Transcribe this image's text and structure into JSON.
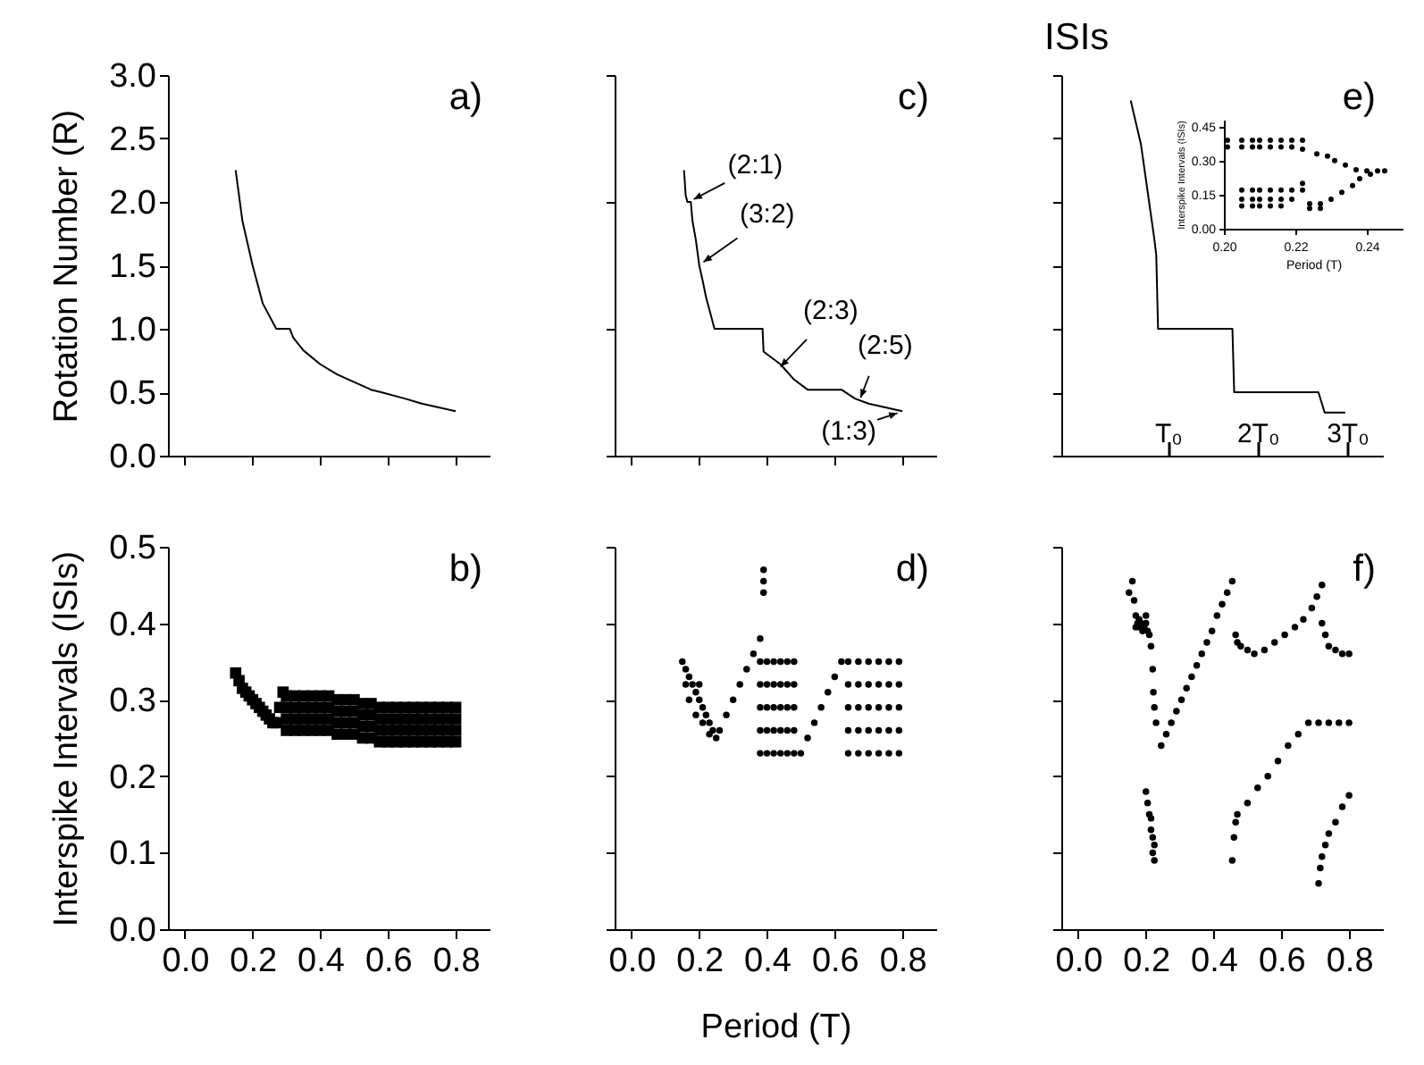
{
  "chart_data": [
    {
      "type": "line",
      "ylabel": "Rotation Number (R)",
      "annotations": [
        "a)"
      ],
      "xlim": [
        -0.05,
        0.9
      ],
      "ylim": [
        0,
        3
      ],
      "tick_labels": "y",
      "xticks": [
        0,
        0.2,
        0.4,
        0.6,
        0.8
      ],
      "yticks": [
        {
          "value": 0,
          "label": "0.0"
        },
        {
          "value": 0.5,
          "label": "0.5"
        },
        {
          "value": 1,
          "label": "1.0"
        },
        {
          "value": 1.5,
          "label": "1.5"
        },
        {
          "value": 2,
          "label": "2.0"
        },
        {
          "value": 2.5,
          "label": "2.5"
        },
        {
          "value": 3,
          "label": "3.0"
        }
      ],
      "series": [
        {
          "color": "#000000",
          "x": [
            0.15,
            0.17,
            0.2,
            0.23,
            0.27,
            0.31,
            0.32,
            0.35,
            0.4,
            0.45,
            0.5,
            0.55,
            0.58,
            0.65,
            0.7,
            0.75,
            0.8
          ],
          "values": [
            2.25,
            1.85,
            1.5,
            1.2,
            1.0,
            1.0,
            0.93,
            0.83,
            0.72,
            0.64,
            0.58,
            0.52,
            0.5,
            0.45,
            0.41,
            0.38,
            0.35
          ]
        }
      ]
    },
    {
      "type": "line",
      "annotations": [
        "c)",
        {
          "text": "(2:1)",
          "x": 0.17,
          "y": 2.0
        },
        {
          "text": "(3:2)",
          "x": 0.2,
          "y": 1.5
        },
        {
          "text": "(2:3)",
          "x": 0.43,
          "y": 0.67
        },
        {
          "text": "(2:5)",
          "x": 0.67,
          "y": 0.42
        },
        {
          "text": "(1:3)",
          "x": 0.8,
          "y": 0.35
        }
      ],
      "xlim": [
        -0.05,
        0.9
      ],
      "ylim": [
        0,
        3
      ],
      "tick_labels": false,
      "xticks": [
        0,
        0.2,
        0.4,
        0.6,
        0.8
      ],
      "yticks": [
        0,
        0.5,
        1,
        1.5,
        2,
        2.5,
        3
      ],
      "series": [
        {
          "color": "#000000",
          "x": [
            0.155,
            0.16,
            0.165,
            0.175,
            0.18,
            0.19,
            0.2,
            0.21,
            0.22,
            0.235,
            0.245,
            0.387,
            0.39,
            0.41,
            0.44,
            0.48,
            0.52,
            0.62,
            0.66,
            0.7,
            0.75,
            0.8
          ],
          "values": [
            2.25,
            2.05,
            2.0,
            2.0,
            1.85,
            1.7,
            1.5,
            1.38,
            1.25,
            1.1,
            1.0,
            1.0,
            0.82,
            0.78,
            0.72,
            0.6,
            0.52,
            0.52,
            0.45,
            0.41,
            0.38,
            0.35
          ]
        }
      ]
    },
    {
      "type": "line",
      "title": "ISIs",
      "annotations": [
        "e)"
      ],
      "xlim": [
        -0.19,
        3.4
      ],
      "ylim": [
        0,
        3
      ],
      "tick_labels": "x",
      "xticks": [
        {
          "value": 1,
          "label": "T₀"
        },
        {
          "value": 2,
          "label": "2T₀"
        },
        {
          "value": 3,
          "label": "3T₀"
        }
      ],
      "yticks": [
        0,
        0.5,
        1,
        1.5,
        2,
        2.5,
        3
      ],
      "series": [
        {
          "color": "#000000",
          "x": [
            0.585,
            0.7,
            0.79,
            0.85,
            0.87,
            0.89,
            1.72,
            1.74,
            2.68,
            2.75,
            2.98
          ],
          "values": [
            2.8,
            2.45,
            2.0,
            1.7,
            1.58,
            1.0,
            1.0,
            0.5,
            0.5,
            0.34,
            0.34
          ]
        }
      ]
    },
    {
      "type": "scatter",
      "xlabel": "Period (T)",
      "ylabel": "Interspike Intervals (ISIs)",
      "xlim": [
        0.2,
        0.25
      ],
      "ylim": [
        0,
        0.48
      ],
      "marker": "circle",
      "xticks": [
        {
          "value": 0.2,
          "label": "0.20"
        },
        {
          "value": 0.22,
          "label": "0.22"
        },
        {
          "value": 0.24,
          "label": "0.24"
        }
      ],
      "yticks": [
        {
          "value": 0,
          "label": "0.00"
        },
        {
          "value": 0.15,
          "label": "0.15"
        },
        {
          "value": 0.3,
          "label": "0.30"
        },
        {
          "value": 0.45,
          "label": "0.45"
        }
      ],
      "series": [
        {
          "color": "#000000",
          "x": [
            0.201,
            0.201,
            0.205,
            0.205,
            0.208,
            0.208,
            0.21,
            0.21,
            0.213,
            0.213,
            0.216,
            0.216,
            0.219,
            0.219,
            0.222,
            0.222,
            0.226,
            0.229,
            0.231,
            0.234,
            0.237,
            0.24,
            0.243,
            0.245,
            0.205,
            0.205,
            0.205,
            0.208,
            0.208,
            0.208,
            0.21,
            0.21,
            0.21,
            0.213,
            0.213,
            0.213,
            0.216,
            0.216,
            0.216,
            0.219,
            0.219,
            0.222,
            0.222,
            0.224,
            0.224,
            0.227,
            0.227,
            0.23,
            0.233,
            0.236,
            0.238,
            0.241
          ],
          "values": [
            0.39,
            0.36,
            0.39,
            0.36,
            0.39,
            0.36,
            0.39,
            0.36,
            0.39,
            0.36,
            0.39,
            0.36,
            0.39,
            0.36,
            0.39,
            0.35,
            0.33,
            0.32,
            0.3,
            0.28,
            0.26,
            0.255,
            0.255,
            0.255,
            0.17,
            0.13,
            0.1,
            0.17,
            0.13,
            0.1,
            0.17,
            0.13,
            0.1,
            0.17,
            0.13,
            0.1,
            0.17,
            0.13,
            0.1,
            0.17,
            0.13,
            0.2,
            0.17,
            0.09,
            0.11,
            0.09,
            0.11,
            0.13,
            0.16,
            0.19,
            0.22,
            0.24
          ]
        }
      ]
    },
    {
      "type": "scatter",
      "ylabel": "Interspike Intervals (ISIs)",
      "annotations": [
        "b)"
      ],
      "xlim": [
        -0.05,
        0.9
      ],
      "ylim": [
        0,
        0.5
      ],
      "marker": "square",
      "xticks": [
        {
          "value": 0,
          "label": "0.0"
        },
        {
          "value": 0.2,
          "label": "0.2"
        },
        {
          "value": 0.4,
          "label": "0.4"
        },
        {
          "value": 0.6,
          "label": "0.6"
        },
        {
          "value": 0.8,
          "label": "0.8"
        }
      ],
      "yticks": [
        {
          "value": 0,
          "label": "0.0"
        },
        {
          "value": 0.1,
          "label": "0.1"
        },
        {
          "value": 0.2,
          "label": "0.2"
        },
        {
          "value": 0.3,
          "label": "0.3"
        },
        {
          "value": 0.4,
          "label": "0.4"
        },
        {
          "value": 0.5,
          "label": "0.5"
        }
      ],
      "series": [
        {
          "color": "#000000",
          "x": [
            0.15,
            0.16,
            0.17,
            0.18,
            0.19,
            0.2,
            0.21,
            0.22,
            0.23,
            0.24,
            0.25,
            0.26,
            0.27,
            0.28,
            0.29,
            0.3,
            0.3,
            0.3,
            0.3,
            0.325,
            0.325,
            0.325,
            0.325,
            0.35,
            0.35,
            0.35,
            0.35,
            0.375,
            0.375,
            0.375,
            0.375,
            0.4,
            0.4,
            0.4,
            0.4,
            0.425,
            0.425,
            0.425,
            0.425,
            0.45,
            0.45,
            0.45,
            0.45,
            0.475,
            0.475,
            0.475,
            0.475,
            0.5,
            0.5,
            0.5,
            0.5,
            0.525,
            0.525,
            0.525,
            0.525,
            0.55,
            0.55,
            0.55,
            0.55,
            0.575,
            0.575,
            0.575,
            0.575,
            0.6,
            0.6,
            0.6,
            0.6,
            0.625,
            0.625,
            0.625,
            0.625,
            0.65,
            0.65,
            0.65,
            0.65,
            0.675,
            0.675,
            0.675,
            0.675,
            0.7,
            0.7,
            0.7,
            0.7,
            0.725,
            0.725,
            0.725,
            0.725,
            0.75,
            0.75,
            0.75,
            0.75,
            0.775,
            0.775,
            0.775,
            0.775,
            0.8,
            0.8,
            0.8,
            0.8
          ],
          "values": [
            0.335,
            0.325,
            0.315,
            0.31,
            0.305,
            0.3,
            0.295,
            0.29,
            0.285,
            0.28,
            0.275,
            0.27,
            0.27,
            0.29,
            0.31,
            0.26,
            0.275,
            0.29,
            0.305,
            0.26,
            0.275,
            0.29,
            0.305,
            0.26,
            0.275,
            0.29,
            0.305,
            0.26,
            0.275,
            0.29,
            0.305,
            0.26,
            0.275,
            0.29,
            0.305,
            0.26,
            0.275,
            0.29,
            0.305,
            0.255,
            0.27,
            0.285,
            0.3,
            0.255,
            0.27,
            0.285,
            0.3,
            0.255,
            0.27,
            0.285,
            0.3,
            0.25,
            0.265,
            0.28,
            0.295,
            0.25,
            0.265,
            0.28,
            0.295,
            0.245,
            0.26,
            0.275,
            0.29,
            0.245,
            0.26,
            0.275,
            0.29,
            0.245,
            0.26,
            0.275,
            0.29,
            0.245,
            0.26,
            0.275,
            0.29,
            0.245,
            0.26,
            0.275,
            0.29,
            0.245,
            0.26,
            0.275,
            0.29,
            0.245,
            0.26,
            0.275,
            0.29,
            0.245,
            0.26,
            0.275,
            0.29,
            0.245,
            0.26,
            0.275,
            0.29,
            0.245,
            0.26,
            0.275,
            0.29
          ]
        }
      ]
    },
    {
      "type": "scatter",
      "xlabel": "Period (T)",
      "annotations": [
        "d)"
      ],
      "xlim": [
        -0.05,
        0.9
      ],
      "ylim": [
        0,
        0.5
      ],
      "tick_labels": "x",
      "marker": "circle",
      "xticks": [
        {
          "value": 0,
          "label": "0.0"
        },
        {
          "value": 0.2,
          "label": "0.2"
        },
        {
          "value": 0.4,
          "label": "0.4"
        },
        {
          "value": 0.6,
          "label": "0.6"
        },
        {
          "value": 0.8,
          "label": "0.8"
        }
      ],
      "yticks": [
        0,
        0.1,
        0.2,
        0.3,
        0.4,
        0.5
      ],
      "series": [
        {
          "color": "#000000",
          "x": [
            0.15,
            0.16,
            0.17,
            0.18,
            0.19,
            0.2,
            0.21,
            0.22,
            0.23,
            0.24,
            0.25,
            0.17,
            0.19,
            0.21,
            0.23,
            0.16,
            0.2,
            0.26,
            0.28,
            0.3,
            0.32,
            0.34,
            0.36,
            0.38,
            0.39,
            0.39,
            0.39,
            0.38,
            0.38,
            0.38,
            0.38,
            0.38,
            0.4,
            0.4,
            0.4,
            0.4,
            0.4,
            0.42,
            0.42,
            0.42,
            0.42,
            0.42,
            0.44,
            0.44,
            0.44,
            0.44,
            0.44,
            0.46,
            0.46,
            0.46,
            0.46,
            0.46,
            0.48,
            0.48,
            0.48,
            0.48,
            0.48,
            0.5,
            0.52,
            0.54,
            0.56,
            0.58,
            0.6,
            0.62,
            0.64,
            0.64,
            0.64,
            0.64,
            0.64,
            0.67,
            0.67,
            0.67,
            0.67,
            0.67,
            0.7,
            0.7,
            0.7,
            0.7,
            0.7,
            0.73,
            0.73,
            0.73,
            0.73,
            0.73,
            0.76,
            0.76,
            0.76,
            0.76,
            0.76,
            0.79,
            0.79,
            0.79,
            0.79,
            0.79
          ],
          "values": [
            0.35,
            0.34,
            0.33,
            0.32,
            0.31,
            0.3,
            0.29,
            0.28,
            0.27,
            0.26,
            0.25,
            0.3,
            0.28,
            0.27,
            0.255,
            0.32,
            0.32,
            0.26,
            0.28,
            0.3,
            0.32,
            0.34,
            0.36,
            0.38,
            0.44,
            0.455,
            0.47,
            0.23,
            0.26,
            0.29,
            0.32,
            0.35,
            0.23,
            0.26,
            0.29,
            0.32,
            0.35,
            0.23,
            0.26,
            0.29,
            0.32,
            0.35,
            0.23,
            0.26,
            0.29,
            0.32,
            0.35,
            0.23,
            0.26,
            0.29,
            0.32,
            0.35,
            0.23,
            0.26,
            0.29,
            0.32,
            0.35,
            0.23,
            0.25,
            0.27,
            0.29,
            0.31,
            0.33,
            0.35,
            0.23,
            0.26,
            0.29,
            0.32,
            0.35,
            0.23,
            0.26,
            0.29,
            0.32,
            0.35,
            0.23,
            0.26,
            0.29,
            0.32,
            0.35,
            0.23,
            0.26,
            0.29,
            0.32,
            0.35,
            0.23,
            0.26,
            0.29,
            0.32,
            0.35,
            0.23,
            0.26,
            0.29,
            0.32,
            0.35
          ]
        }
      ]
    },
    {
      "type": "scatter",
      "annotations": [
        "f)"
      ],
      "xlim": [
        -0.05,
        0.9
      ],
      "ylim": [
        0,
        0.5
      ],
      "tick_labels": "x",
      "marker": "circle",
      "xticks": [
        {
          "value": 0,
          "label": "0.0"
        },
        {
          "value": 0.2,
          "label": "0.2"
        },
        {
          "value": 0.4,
          "label": "0.4"
        },
        {
          "value": 0.6,
          "label": "0.6"
        },
        {
          "value": 0.8,
          "label": "0.8"
        }
      ],
      "yticks": [
        0,
        0.1,
        0.2,
        0.3,
        0.4,
        0.5
      ],
      "series": [
        {
          "color": "#000000",
          "x": [
            0.15,
            0.16,
            0.165,
            0.17,
            0.175,
            0.18,
            0.185,
            0.19,
            0.195,
            0.2,
            0.205,
            0.21,
            0.17,
            0.18,
            0.2,
            0.215,
            0.22,
            0.222,
            0.225,
            0.23,
            0.2,
            0.205,
            0.21,
            0.215,
            0.22,
            0.22,
            0.225,
            0.215,
            0.225,
            0.245,
            0.26,
            0.275,
            0.29,
            0.305,
            0.32,
            0.335,
            0.35,
            0.365,
            0.38,
            0.395,
            0.41,
            0.425,
            0.44,
            0.455,
            0.465,
            0.47,
            0.48,
            0.5,
            0.52,
            0.55,
            0.58,
            0.61,
            0.64,
            0.665,
            0.69,
            0.705,
            0.72,
            0.72,
            0.73,
            0.74,
            0.76,
            0.78,
            0.8,
            0.455,
            0.46,
            0.465,
            0.47,
            0.5,
            0.53,
            0.56,
            0.59,
            0.62,
            0.65,
            0.68,
            0.71,
            0.74,
            0.77,
            0.8,
            0.71,
            0.715,
            0.72,
            0.73,
            0.74,
            0.76,
            0.78,
            0.8
          ],
          "values": [
            0.44,
            0.455,
            0.43,
            0.41,
            0.4,
            0.395,
            0.4,
            0.39,
            0.395,
            0.4,
            0.39,
            0.385,
            0.395,
            0.405,
            0.41,
            0.37,
            0.34,
            0.31,
            0.29,
            0.27,
            0.18,
            0.165,
            0.15,
            0.13,
            0.12,
            0.1,
            0.09,
            0.145,
            0.11,
            0.24,
            0.255,
            0.27,
            0.285,
            0.3,
            0.315,
            0.33,
            0.345,
            0.36,
            0.375,
            0.39,
            0.41,
            0.425,
            0.44,
            0.455,
            0.385,
            0.375,
            0.37,
            0.365,
            0.36,
            0.365,
            0.375,
            0.385,
            0.395,
            0.405,
            0.42,
            0.435,
            0.45,
            0.4,
            0.385,
            0.37,
            0.365,
            0.36,
            0.36,
            0.09,
            0.12,
            0.14,
            0.15,
            0.165,
            0.185,
            0.2,
            0.22,
            0.24,
            0.255,
            0.27,
            0.27,
            0.27,
            0.27,
            0.27,
            0.06,
            0.08,
            0.095,
            0.11,
            0.125,
            0.14,
            0.16,
            0.175
          ]
        }
      ]
    }
  ]
}
